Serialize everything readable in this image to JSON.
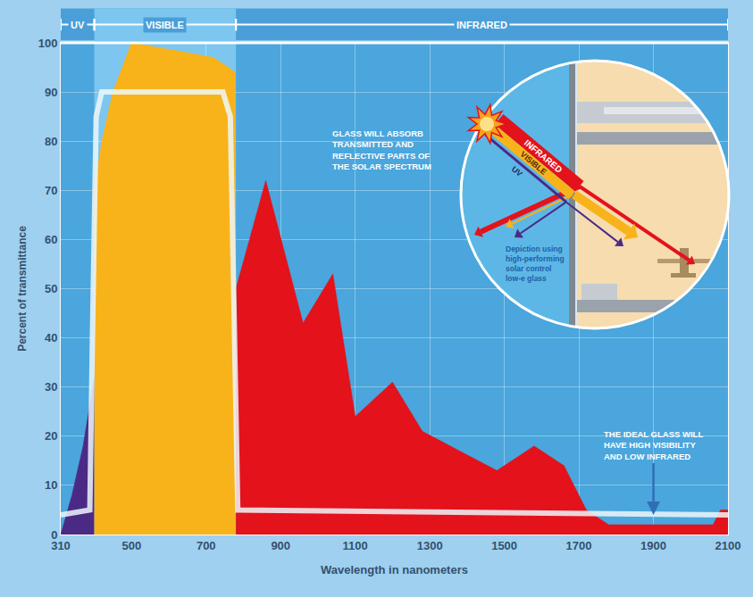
{
  "chart_data": {
    "type": "area",
    "x_label": "Wavelength in nanometers",
    "y_label": "Percent of transmittance",
    "xlim": [
      310,
      2100
    ],
    "xticks": [
      310,
      500,
      700,
      900,
      1100,
      1300,
      1500,
      1700,
      1900,
      2100
    ],
    "ylim": [
      0,
      100
    ],
    "yticks": [
      0,
      10,
      20,
      30,
      40,
      50,
      60,
      70,
      80,
      90,
      100
    ],
    "grid": true,
    "bands": [
      {
        "label": "UV",
        "from": 310,
        "to": 400
      },
      {
        "label": "VISIBLE",
        "from": 400,
        "to": 780
      },
      {
        "label": "INFRARED",
        "from": 780,
        "to": 2100
      }
    ],
    "series": [
      {
        "color": "#4b2a85",
        "x": [
          310,
          340,
          370,
          400
        ],
        "values": [
          0,
          8,
          18,
          32
        ]
      },
      {
        "color": "#f9b31a",
        "x": [
          400,
          420,
          450,
          500,
          650,
          720,
          760,
          778
        ],
        "values": [
          70,
          80,
          90,
          100,
          98,
          97,
          95,
          94
        ]
      },
      {
        "color": "#e3121b",
        "x": [
          780,
          860,
          960,
          1040,
          1100,
          1200,
          1280,
          1380,
          1480,
          1580,
          1660,
          1720,
          1780,
          2060,
          2080,
          2100
        ],
        "values": [
          50,
          72,
          43,
          53,
          24,
          31,
          21,
          17,
          13,
          18,
          14,
          5,
          2,
          2,
          5,
          5
        ]
      },
      {
        "color": "#eef7fc",
        "type": "line",
        "x": [
          310,
          388,
          395,
          405,
          420,
          745,
          765,
          775,
          785,
          2100
        ],
        "values": [
          4,
          5,
          40,
          85,
          90,
          90,
          85,
          40,
          5,
          4
        ]
      }
    ],
    "annotations": [
      "GLASS WILL ABSORB TRANSMITTED AND REFLECTIVE PARTS OF THE SOLAR SPECTRUM",
      "THE IDEAL GLASS WILL HAVE HIGH VISIBILITY AND LOW INFRARED"
    ],
    "inset": {
      "labels": [
        "INFRARED",
        "VISIBLE",
        "UV"
      ],
      "caption": "Depiction using high-performing solar control low-e glass"
    }
  }
}
